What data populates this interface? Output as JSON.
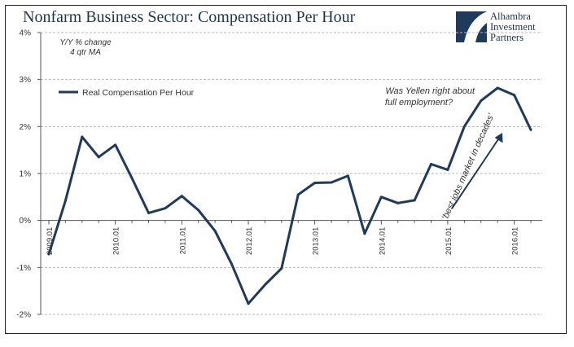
{
  "title": "Nonfarm Business Sector: Compensation Per Hour",
  "logo": {
    "name": "alhambra-logo",
    "lines": [
      "Alhambra",
      "Investment",
      "Partners"
    ]
  },
  "colors": {
    "line": "#1f3a5a",
    "grid": "#b8b8b8",
    "text": "#333333",
    "title": "#1f3550"
  },
  "chart_data": {
    "type": "line",
    "title": "Nonfarm Business Sector: Compensation Per Hour",
    "subtitle": [
      "Y/Y % change",
      "4 qtr MA"
    ],
    "ylim": [
      -2,
      4
    ],
    "yticks": [
      -2,
      -1,
      0,
      1,
      2,
      3,
      4
    ],
    "ytick_labels": [
      "-2%",
      "-1%",
      "0%",
      "1%",
      "2%",
      "3%",
      "4%"
    ],
    "grid": true,
    "legend": {
      "placement": "top-left",
      "entries": [
        "Real Compensation Per Hour"
      ]
    },
    "xtick_labels": [
      "2009.01",
      "2010.01",
      "2011.01",
      "2012.01",
      "2013.01",
      "2014.01",
      "2015.01",
      "2016.01"
    ],
    "series": [
      {
        "name": "Real Compensation Per Hour",
        "x": [
          "2009.01",
          "2009.02",
          "2009.03",
          "2009.04",
          "2010.01",
          "2010.02",
          "2010.03",
          "2010.04",
          "2011.01",
          "2011.02",
          "2011.03",
          "2011.04",
          "2012.01",
          "2012.02",
          "2012.03",
          "2012.04",
          "2013.01",
          "2013.02",
          "2013.03",
          "2013.04",
          "2014.01",
          "2014.02",
          "2014.03",
          "2014.04",
          "2015.01",
          "2015.02",
          "2015.03",
          "2015.04",
          "2016.01",
          "2016.02"
        ],
        "values": [
          -0.72,
          0.42,
          1.78,
          1.35,
          1.61,
          0.9,
          0.16,
          0.26,
          0.52,
          0.22,
          -0.22,
          -0.93,
          -1.77,
          -1.37,
          -1.02,
          0.55,
          0.8,
          0.81,
          0.95,
          -0.28,
          0.5,
          0.37,
          0.43,
          1.2,
          1.08,
          2.0,
          2.55,
          2.82,
          2.67,
          1.93
        ]
      }
    ],
    "annotations": [
      {
        "text": "Was Yellen right about",
        "text2": "full employment?"
      },
      {
        "text": "'best jobs market in decades'"
      }
    ]
  }
}
